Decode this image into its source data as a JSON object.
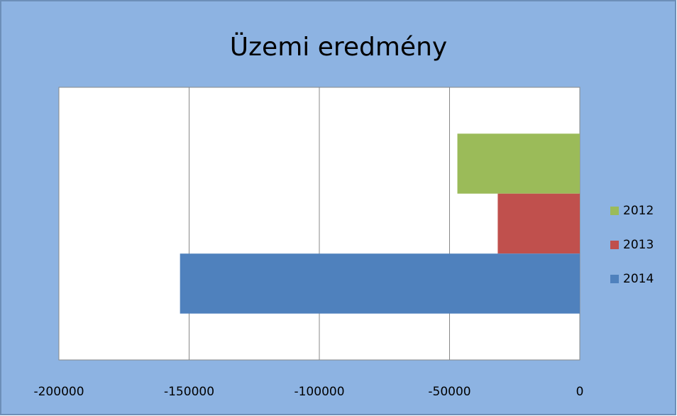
{
  "chart_data": {
    "type": "bar",
    "orientation": "horizontal",
    "title": "Üzemi eredmény",
    "categories": [
      null
    ],
    "series": [
      {
        "name": "2012",
        "color": "#9bbb59",
        "values": [
          -47000
        ]
      },
      {
        "name": "2013",
        "color": "#c0504d",
        "values": [
          -31500
        ]
      },
      {
        "name": "2014",
        "color": "#4f81bd",
        "values": [
          -153500
        ]
      }
    ],
    "xlim": [
      -200000,
      0
    ],
    "xticks": [
      -200000,
      -150000,
      -100000,
      -50000,
      0
    ],
    "grid": true,
    "legend": "right"
  }
}
